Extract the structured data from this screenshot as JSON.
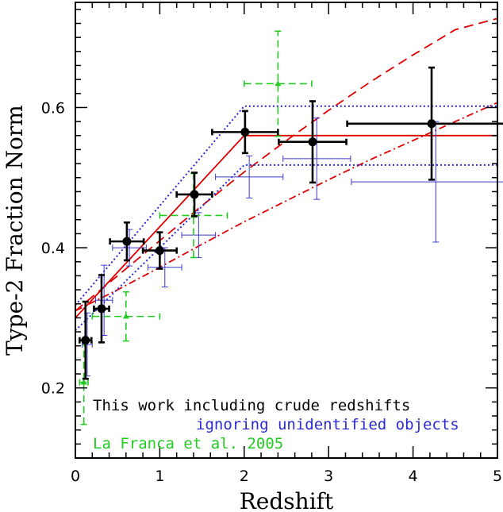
{
  "chart_data": {
    "type": "scatter",
    "xlabel": "Redshift",
    "ylabel": "Type-2 Fraction Norm",
    "xlim": [
      0,
      5
    ],
    "ylim": [
      0.1,
      0.75
    ],
    "x_ticks": [
      0,
      1,
      2,
      3,
      4,
      5
    ],
    "x_tick_labels": [
      "0",
      "1",
      "2",
      "3",
      "4",
      "5"
    ],
    "y_ticks": [
      0.2,
      0.4,
      0.6
    ],
    "y_tick_labels": [
      "0.2",
      "0.4",
      "0.6"
    ],
    "grid": false,
    "legend_placement": "bottom-left",
    "colors": {
      "black": "#000000",
      "blue": "#3a3ad0",
      "green": "#22cc22",
      "red": "#e00000"
    },
    "series": [
      {
        "name": "This work including crude redshifts",
        "color": "#000000",
        "points": [
          {
            "x": 0.12,
            "y": 0.268,
            "xerr": [
              0.07,
              0.07
            ],
            "yerr": [
              0.055,
              0.055
            ]
          },
          {
            "x": 0.31,
            "y": 0.313,
            "xerr": [
              0.09,
              0.09
            ],
            "yerr": [
              0.048,
              0.048
            ]
          },
          {
            "x": 0.61,
            "y": 0.409,
            "xerr": [
              0.2,
              0.2
            ],
            "yerr": [
              0.027,
              0.027
            ]
          },
          {
            "x": 1.0,
            "y": 0.396,
            "xerr": [
              0.2,
              0.2
            ],
            "yerr": [
              0.026,
              0.026
            ]
          },
          {
            "x": 1.41,
            "y": 0.476,
            "xerr": [
              0.21,
              0.21
            ],
            "yerr": [
              0.031,
              0.031
            ]
          },
          {
            "x": 2.01,
            "y": 0.565,
            "xerr": [
              0.39,
              0.39
            ],
            "yerr": [
              0.03,
              0.03
            ]
          },
          {
            "x": 2.81,
            "y": 0.551,
            "xerr": [
              0.4,
              0.4
            ],
            "yerr": [
              0.058,
              0.058
            ]
          },
          {
            "x": 4.22,
            "y": 0.577,
            "xerr": [
              1.0,
              1.0
            ],
            "yerr": [
              0.08,
              0.08
            ]
          }
        ]
      },
      {
        "name": "ignoring unidentified objects",
        "color": "#3a3ad0",
        "points": [
          {
            "x": 0.14,
            "y": 0.262,
            "xerr": [
              0.06,
              0.06
            ],
            "yerr": [
              0.045,
              0.045
            ]
          },
          {
            "x": 0.34,
            "y": 0.325,
            "xerr": [
              0.1,
              0.1
            ],
            "yerr": [
              0.05,
              0.05
            ]
          },
          {
            "x": 0.64,
            "y": 0.4,
            "xerr": [
              0.2,
              0.2
            ],
            "yerr": [
              0.026,
              0.026
            ]
          },
          {
            "x": 1.06,
            "y": 0.372,
            "xerr": [
              0.2,
              0.2
            ],
            "yerr": [
              0.028,
              0.028
            ]
          },
          {
            "x": 1.46,
            "y": 0.418,
            "xerr": [
              0.2,
              0.2
            ],
            "yerr": [
              0.032,
              0.032
            ]
          },
          {
            "x": 2.06,
            "y": 0.501,
            "xerr": [
              0.4,
              0.4
            ],
            "yerr": [
              0.03,
              0.03
            ]
          },
          {
            "x": 2.86,
            "y": 0.527,
            "xerr": [
              0.4,
              0.4
            ],
            "yerr": [
              0.058,
              0.058
            ]
          },
          {
            "x": 4.27,
            "y": 0.494,
            "xerr": [
              1.0,
              1.0
            ],
            "yerr": [
              0.086,
              0.086
            ]
          }
        ]
      },
      {
        "name": "La Franca et al. 2005",
        "color": "#22cc22",
        "points": [
          {
            "x": 0.1,
            "y": 0.208,
            "xerr": [
              0.05,
              0.05
            ],
            "yerr": [
              0.06,
              0.06
            ]
          },
          {
            "x": 0.6,
            "y": 0.302,
            "xerr": [
              0.4,
              0.4
            ],
            "yerr": [
              0.035,
              0.035
            ]
          },
          {
            "x": 1.4,
            "y": 0.446,
            "xerr": [
              0.4,
              0.4
            ],
            "yerr": [
              0.06,
              0.06
            ]
          },
          {
            "x": 2.4,
            "y": 0.634,
            "xerr": [
              0.4,
              0.4
            ],
            "yerr": [
              0.075,
              0.075
            ]
          }
        ]
      }
    ],
    "lines": [
      {
        "color": "#e00000",
        "style": "solid",
        "x": [
          0,
          2,
          5
        ],
        "y": [
          0.3,
          0.56,
          0.56
        ]
      },
      {
        "color": "#e00000",
        "style": "dashed",
        "x": [
          0,
          0.5,
          1,
          1.5,
          2,
          2.5,
          3,
          3.5,
          4,
          4.5,
          5
        ],
        "y": [
          0.31,
          0.36,
          0.41,
          0.46,
          0.508,
          0.553,
          0.596,
          0.637,
          0.675,
          0.711,
          0.727
        ]
      },
      {
        "color": "#e00000",
        "style": "dashdot",
        "x": [
          0,
          0.5,
          1,
          1.5,
          2,
          2.5,
          3,
          3.5,
          4,
          4.5,
          5
        ],
        "y": [
          0.31,
          0.34,
          0.372,
          0.405,
          0.437,
          0.467,
          0.497,
          0.526,
          0.553,
          0.58,
          0.607
        ]
      },
      {
        "color": "#2a2ad0",
        "style": "dotted",
        "x": [
          0,
          2,
          5
        ],
        "y": [
          0.318,
          0.602,
          0.602
        ]
      },
      {
        "color": "#2a2ad0",
        "style": "dotted",
        "x": [
          0,
          2,
          5
        ],
        "y": [
          0.282,
          0.518,
          0.518
        ]
      }
    ],
    "legend": [
      {
        "text": "This work including crude redshifts",
        "color": "#000000"
      },
      {
        "text": "ignoring unidentified objects",
        "color": "#2a2ad0"
      },
      {
        "text": "La Franca et al. 2005",
        "color": "#22cc22"
      }
    ]
  }
}
